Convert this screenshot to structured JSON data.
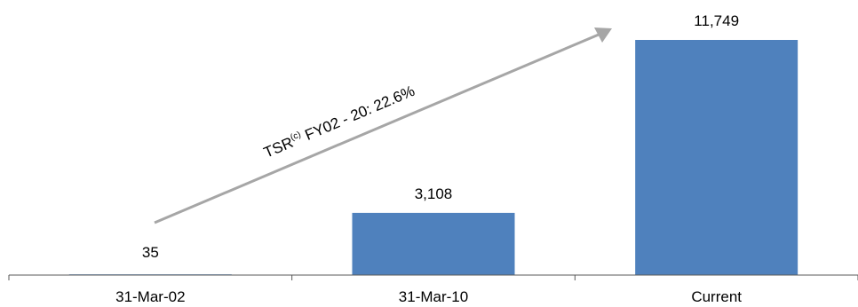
{
  "chart_data": {
    "type": "bar",
    "categories": [
      "31-Mar-02",
      "31-Mar-10",
      "Current"
    ],
    "values": [
      35,
      3108,
      11749
    ],
    "data_labels": [
      "35",
      "3,108",
      "11,749"
    ],
    "title": "",
    "xlabel": "",
    "ylabel": "",
    "ylim": [
      0,
      11749
    ],
    "grid": false,
    "legend": "none",
    "annotation": {
      "text_main": "TSR",
      "text_sup": "(c)",
      "text_rest": " FY02 - 20: 22.6%"
    },
    "colors": {
      "bar": "#4F81BD",
      "arrow": "#A6A6A6",
      "axis": "#595959"
    }
  }
}
